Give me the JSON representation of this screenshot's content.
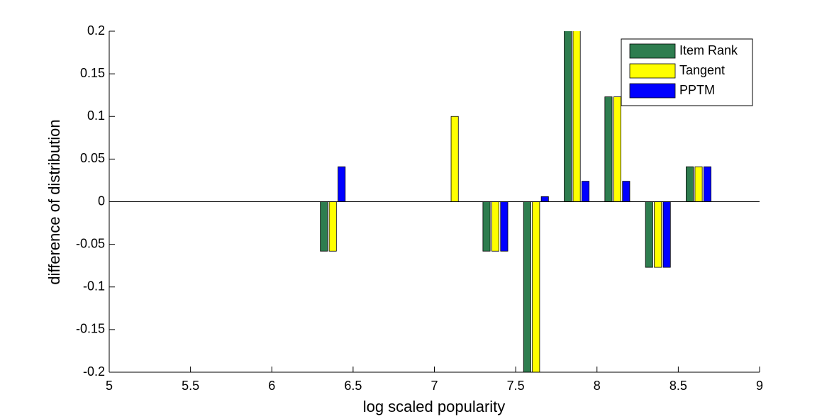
{
  "chart_data": {
    "type": "bar",
    "xlabel": "log scaled popularity",
    "ylabel": "difference of distribution",
    "x": [
      6.375,
      7.125,
      7.375,
      7.625,
      7.875,
      8.125,
      8.375,
      8.625
    ],
    "series": [
      {
        "name": "Item Rank",
        "color": "#2e7d4f",
        "values": [
          -0.058,
          0,
          -0.058,
          -0.21,
          0.21,
          0.123,
          -0.077,
          0.041
        ]
      },
      {
        "name": "Tangent",
        "color": "#ffff00",
        "values": [
          -0.058,
          0.1,
          -0.058,
          -0.21,
          0.21,
          0.123,
          -0.077,
          0.041
        ]
      },
      {
        "name": "PPTM",
        "color": "#0000ff",
        "values": [
          0.041,
          0,
          -0.058,
          0.006,
          0.024,
          0.024,
          -0.077,
          0.041
        ]
      }
    ],
    "xlim": [
      5,
      9
    ],
    "xticks": [
      5,
      5.5,
      6,
      6.5,
      7,
      7.5,
      8,
      8.5,
      9
    ],
    "ylim": [
      -0.2,
      0.2
    ],
    "yticks": [
      -0.2,
      -0.15,
      -0.1,
      -0.05,
      0,
      0.05,
      0.1,
      0.15,
      0.2
    ],
    "legend": "top-right"
  }
}
